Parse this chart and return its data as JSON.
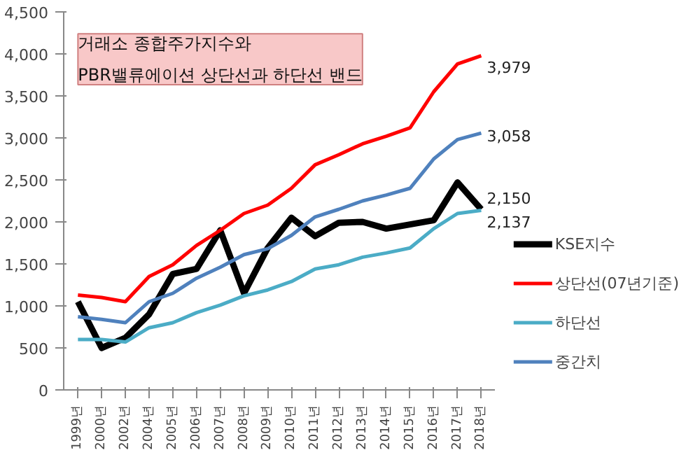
{
  "chart_data": {
    "type": "line",
    "title": "거래소 종합주가지수와\nPBR밸류에이션 상단선과 하단선 밴드",
    "categories": [
      "1999년",
      "2000년",
      "2002년",
      "2004년",
      "2005년",
      "2006년",
      "2007년",
      "2008년",
      "2009년",
      "2010년",
      "2011년",
      "2012년",
      "2013년",
      "2014년",
      "2015년",
      "2016년",
      "2017년",
      "2018년"
    ],
    "series": [
      {
        "name": "KSE지수",
        "color": "#000000",
        "values": [
          1050,
          500,
          620,
          900,
          1380,
          1440,
          1900,
          1150,
          1690,
          2050,
          1830,
          1990,
          2000,
          1920,
          1970,
          2020,
          2470,
          2150
        ],
        "value_labels": [
          null,
          null,
          null,
          null,
          null,
          null,
          null,
          null,
          null,
          null,
          null,
          null,
          null,
          null,
          null,
          null,
          null,
          "2,150"
        ]
      },
      {
        "name": "상단선(07년기준)",
        "color": "#ff0000",
        "values": [
          1130,
          1100,
          1050,
          1350,
          1490,
          1720,
          1900,
          2100,
          2200,
          2400,
          2680,
          2800,
          2930,
          3020,
          3120,
          3550,
          3880,
          3979
        ],
        "value_labels": [
          null,
          null,
          null,
          null,
          null,
          null,
          null,
          null,
          null,
          null,
          null,
          null,
          null,
          null,
          null,
          null,
          null,
          "3,979"
        ]
      },
      {
        "name": "하단선",
        "color": "#4bacc6",
        "values": [
          600,
          600,
          570,
          740,
          800,
          920,
          1010,
          1120,
          1190,
          1290,
          1440,
          1490,
          1580,
          1630,
          1690,
          1920,
          2100,
          2137
        ],
        "value_labels": [
          null,
          null,
          null,
          null,
          null,
          null,
          null,
          null,
          null,
          null,
          null,
          null,
          null,
          null,
          null,
          null,
          null,
          "2,137"
        ]
      },
      {
        "name": "중간치",
        "color": "#4f81bd",
        "values": [
          870,
          840,
          800,
          1050,
          1150,
          1330,
          1460,
          1610,
          1680,
          1840,
          2060,
          2150,
          2250,
          2320,
          2400,
          2750,
          2980,
          3058
        ],
        "value_labels": [
          null,
          null,
          null,
          null,
          null,
          null,
          null,
          null,
          null,
          null,
          null,
          null,
          null,
          null,
          null,
          null,
          null,
          "3,058"
        ]
      }
    ],
    "ylim": [
      0,
      4500
    ],
    "yticks": [
      {
        "value": 0,
        "label": "0"
      },
      {
        "value": 500,
        "label": "500"
      },
      {
        "value": 1000,
        "label": "1,000"
      },
      {
        "value": 1500,
        "label": "1,500"
      },
      {
        "value": 2000,
        "label": "2,000"
      },
      {
        "value": 2500,
        "label": "2,500"
      },
      {
        "value": 3000,
        "label": "3,000"
      },
      {
        "value": 3500,
        "label": "3,500"
      },
      {
        "value": 4000,
        "label": "4,000"
      },
      {
        "value": 4500,
        "label": "4,500"
      }
    ],
    "grid": false,
    "legend": "right"
  }
}
